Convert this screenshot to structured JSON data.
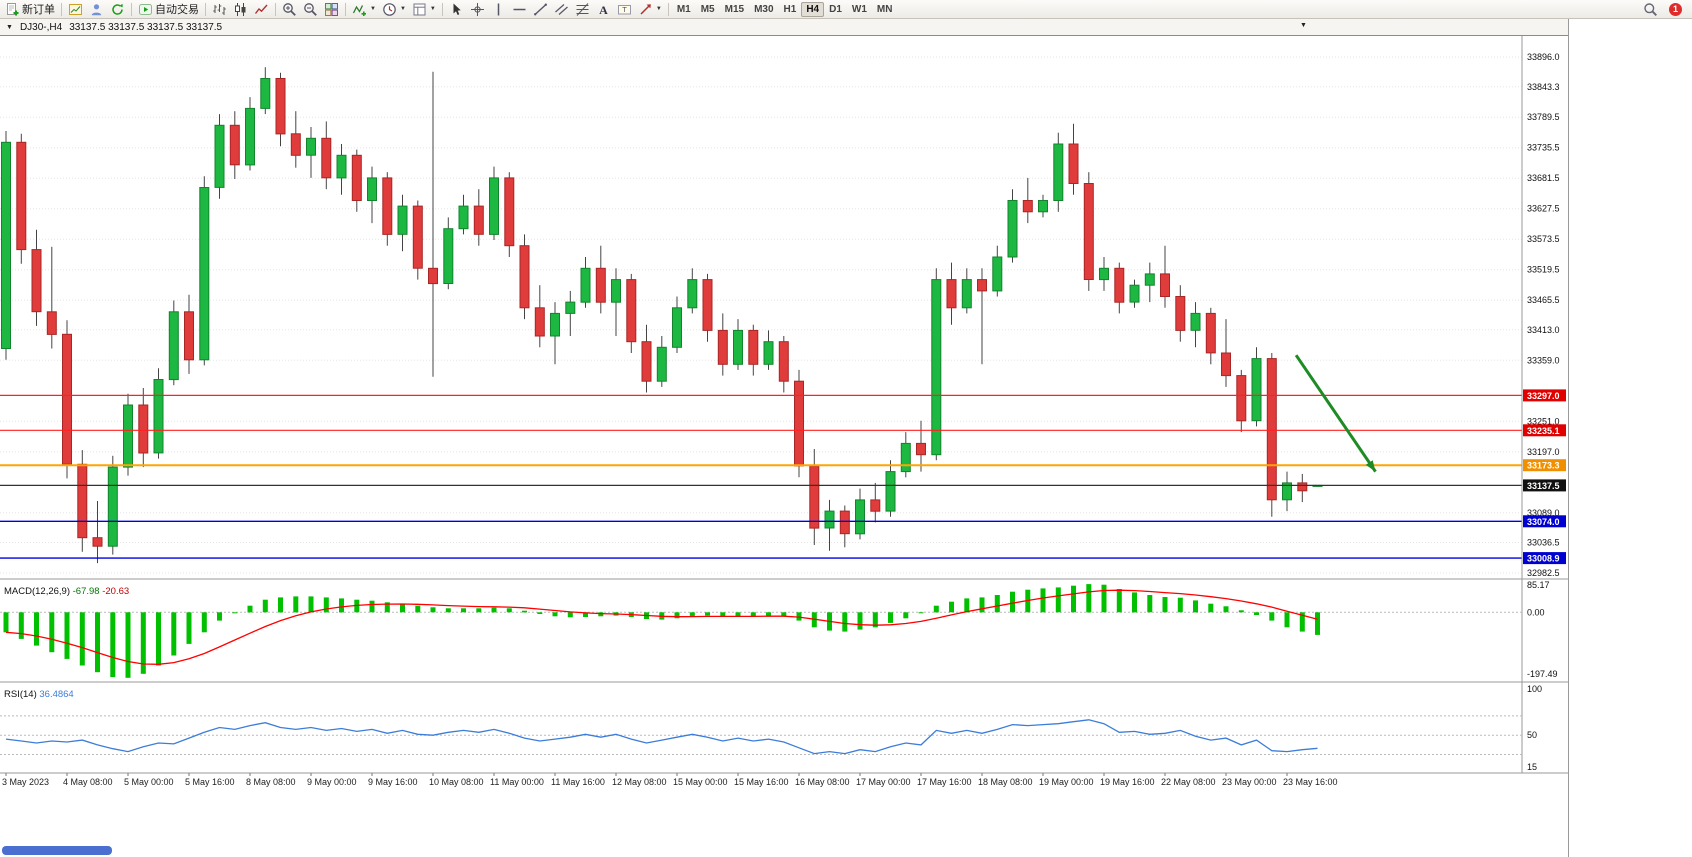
{
  "toolbar": {
    "groups": [
      {
        "name": "order",
        "items": [
          {
            "icon": "new-order",
            "label": "新订单",
            "name": "new-order-button"
          }
        ]
      },
      {
        "name": "windows",
        "items": [
          {
            "icon": "new-chart",
            "name": "new-chart-button"
          },
          {
            "icon": "profiles",
            "name": "profiles-button"
          },
          {
            "icon": "refresh",
            "name": "refresh-button"
          }
        ]
      },
      {
        "name": "autotrading",
        "items": [
          {
            "icon": "autotrading",
            "label": "自动交易",
            "name": "autotrading-button"
          }
        ]
      },
      {
        "name": "chart-types",
        "items": [
          {
            "icon": "bar-chart",
            "name": "bar-chart-button"
          },
          {
            "icon": "candle-chart",
            "name": "candlestick-chart-button"
          },
          {
            "icon": "line-chart",
            "name": "line-chart-button"
          }
        ]
      },
      {
        "name": "zoom",
        "items": [
          {
            "icon": "zoom-in",
            "name": "zoom-in-button"
          },
          {
            "icon": "zoom-out",
            "name": "zoom-out-button"
          },
          {
            "icon": "tile-windows",
            "name": "tile-windows-button"
          }
        ]
      },
      {
        "name": "tools",
        "items": [
          {
            "icon": "indicators",
            "dropdown": true,
            "name": "indicators-button"
          },
          {
            "icon": "periods",
            "dropdown": true,
            "name": "periods-button"
          },
          {
            "icon": "templates",
            "dropdown": true,
            "name": "templates-button"
          }
        ]
      },
      {
        "name": "objects",
        "items": [
          {
            "icon": "cursor",
            "name": "cursor-button"
          },
          {
            "icon": "crosshair",
            "name": "crosshair-button"
          },
          {
            "icon": "vertical-line",
            "name": "vertical-line-button"
          },
          {
            "icon": "horizontal-line",
            "name": "horizontal-line-button"
          },
          {
            "icon": "trendline",
            "name": "trendline-button"
          },
          {
            "icon": "channel",
            "name": "channel-button"
          },
          {
            "icon": "fibonacci",
            "name": "fibonacci-button"
          },
          {
            "icon": "text",
            "name": "text-button"
          },
          {
            "icon": "text-label",
            "name": "text-label-button"
          },
          {
            "icon": "arrows",
            "dropdown": true,
            "name": "arrows-button"
          }
        ]
      },
      {
        "name": "timeframes",
        "items": []
      }
    ],
    "timeframes": [
      "M1",
      "M5",
      "M15",
      "M30",
      "H1",
      "H4",
      "D1",
      "W1",
      "MN"
    ],
    "active_timeframe": "H4",
    "right": {
      "badge": "1"
    }
  },
  "chart": {
    "title_symbol": "DJ30-,H4",
    "title_ohlc": "33137.5 33137.5 33137.5 33137.5"
  },
  "chart_data": [
    {
      "id": "price",
      "type": "candlestick",
      "symbol": "DJ30-",
      "timeframe": "H4",
      "colors": {
        "up": "#1db841",
        "up_border": "#12842e",
        "down": "#e03c3c",
        "down_border": "#a82626",
        "wick": "#444444"
      },
      "x_label_step": 4,
      "x_labels": [
        "3 May 2023",
        "4 May 08:00",
        "5 May 00:00",
        "5 May 16:00",
        "8 May 08:00",
        "9 May 00:00",
        "9 May 16:00",
        "10 May 08:00",
        "11 May 00:00",
        "11 May 16:00",
        "12 May 08:00",
        "15 May 00:00",
        "15 May 16:00",
        "16 May 08:00",
        "17 May 00:00",
        "17 May 16:00",
        "18 May 08:00",
        "19 May 00:00",
        "19 May 16:00",
        "22 May 08:00",
        "23 May 00:00",
        "23 May 16:00"
      ],
      "y_ticks": [
        "33896.0",
        "33843.3",
        "33789.5",
        "33735.5",
        "33681.5",
        "33627.5",
        "33573.5",
        "33519.5",
        "33465.5",
        "33413.0",
        "33359.0",
        "33251.0",
        "33197.0",
        "33089.0",
        "33036.5",
        "32982.5"
      ],
      "candles": [
        [
          33380,
          33765,
          33360,
          33745
        ],
        [
          33745,
          33760,
          33530,
          33555
        ],
        [
          33555,
          33590,
          33420,
          33445
        ],
        [
          33445,
          33560,
          33380,
          33405
        ],
        [
          33405,
          33430,
          33150,
          33175
        ],
        [
          33175,
          33200,
          33020,
          33045
        ],
        [
          33045,
          33110,
          33000,
          33030
        ],
        [
          33030,
          33190,
          33015,
          33170
        ],
        [
          33170,
          33300,
          33155,
          33280
        ],
        [
          33280,
          33310,
          33170,
          33195
        ],
        [
          33195,
          33345,
          33185,
          33325
        ],
        [
          33325,
          33465,
          33315,
          33445
        ],
        [
          33445,
          33475,
          33335,
          33360
        ],
        [
          33360,
          33685,
          33350,
          33665
        ],
        [
          33665,
          33795,
          33645,
          33775
        ],
        [
          33775,
          33800,
          33680,
          33705
        ],
        [
          33705,
          33825,
          33695,
          33805
        ],
        [
          33805,
          33878,
          33795,
          33858
        ],
        [
          33858,
          33868,
          33738,
          33760
        ],
        [
          33760,
          33800,
          33700,
          33722
        ],
        [
          33722,
          33772,
          33682,
          33752
        ],
        [
          33752,
          33782,
          33662,
          33682
        ],
        [
          33682,
          33742,
          33652,
          33722
        ],
        [
          33722,
          33732,
          33622,
          33642
        ],
        [
          33642,
          33702,
          33602,
          33682
        ],
        [
          33682,
          33692,
          33562,
          33582
        ],
        [
          33582,
          33652,
          33552,
          33632
        ],
        [
          33632,
          33642,
          33502,
          33522
        ],
        [
          33522,
          33870,
          33330,
          33495
        ],
        [
          33495,
          33612,
          33485,
          33592
        ],
        [
          33592,
          33652,
          33582,
          33632
        ],
        [
          33632,
          33662,
          33562,
          33582
        ],
        [
          33582,
          33702,
          33572,
          33682
        ],
        [
          33682,
          33692,
          33542,
          33562
        ],
        [
          33562,
          33582,
          33432,
          33452
        ],
        [
          33452,
          33492,
          33382,
          33402
        ],
        [
          33402,
          33462,
          33352,
          33442
        ],
        [
          33442,
          33482,
          33402,
          33462
        ],
        [
          33462,
          33542,
          33452,
          33522
        ],
        [
          33522,
          33562,
          33442,
          33462
        ],
        [
          33462,
          33522,
          33402,
          33502
        ],
        [
          33502,
          33512,
          33372,
          33392
        ],
        [
          33392,
          33422,
          33302,
          33322
        ],
        [
          33322,
          33402,
          33312,
          33382
        ],
        [
          33382,
          33472,
          33372,
          33452
        ],
        [
          33452,
          33522,
          33442,
          33502
        ],
        [
          33502,
          33512,
          33392,
          33412
        ],
        [
          33412,
          33442,
          33332,
          33352
        ],
        [
          33352,
          33432,
          33342,
          33412
        ],
        [
          33412,
          33422,
          33332,
          33352
        ],
        [
          33352,
          33412,
          33342,
          33392
        ],
        [
          33392,
          33402,
          33302,
          33322
        ],
        [
          33322,
          33342,
          33152,
          33172
        ],
        [
          33172,
          33202,
          33032,
          33062
        ],
        [
          33062,
          33112,
          33022,
          33092
        ],
        [
          33092,
          33102,
          33028,
          33052
        ],
        [
          33052,
          33132,
          33042,
          33112
        ],
        [
          33112,
          33142,
          33072,
          33092
        ],
        [
          33092,
          33182,
          33082,
          33162
        ],
        [
          33162,
          33232,
          33152,
          33212
        ],
        [
          33212,
          33252,
          33162,
          33192
        ],
        [
          33192,
          33522,
          33182,
          33502
        ],
        [
          33502,
          33532,
          33422,
          33452
        ],
        [
          33452,
          33522,
          33442,
          33502
        ],
        [
          33502,
          33522,
          33352,
          33482
        ],
        [
          33482,
          33562,
          33472,
          33542
        ],
        [
          33542,
          33662,
          33532,
          33642
        ],
        [
          33642,
          33682,
          33602,
          33622
        ],
        [
          33622,
          33652,
          33612,
          33642
        ],
        [
          33642,
          33762,
          33622,
          33742
        ],
        [
          33742,
          33778,
          33652,
          33672
        ],
        [
          33672,
          33692,
          33482,
          33502
        ],
        [
          33502,
          33542,
          33482,
          33522
        ],
        [
          33522,
          33532,
          33442,
          33462
        ],
        [
          33462,
          33502,
          33452,
          33492
        ],
        [
          33492,
          33532,
          33462,
          33512
        ],
        [
          33512,
          33562,
          33452,
          33472
        ],
        [
          33472,
          33492,
          33392,
          33412
        ],
        [
          33412,
          33462,
          33382,
          33442
        ],
        [
          33442,
          33452,
          33352,
          33372
        ],
        [
          33372,
          33432,
          33312,
          33332
        ],
        [
          33332,
          33342,
          33232,
          33252
        ],
        [
          33252,
          33382,
          33242,
          33362
        ],
        [
          33362,
          33372,
          33082,
          33112
        ],
        [
          33112,
          33162,
          33092,
          33142
        ],
        [
          33142,
          33158,
          33108,
          33128
        ],
        [
          33137.5,
          33137.5,
          33137.5,
          33137.5
        ]
      ],
      "hlines": [
        {
          "price": 33297.0,
          "label": "33297.0",
          "color": "#ff2020",
          "tag_bg": "#e00000",
          "width": 1.2
        },
        {
          "price": 33235.1,
          "label": "33235.1",
          "color": "#ff2020",
          "tag_bg": "#e00000",
          "width": 1.2
        },
        {
          "price": 33173.3,
          "label": "33173.3",
          "color": "#ffa500",
          "tag_bg": "#f09000",
          "width": 2
        },
        {
          "price": 33137.5,
          "label": "33137.5",
          "color": "#333333",
          "tag_bg": "#111111",
          "width": 1.2
        },
        {
          "price": 33074.0,
          "label": "33074.0",
          "color": "#0000e0",
          "tag_bg": "#0000d0",
          "width": 1.4
        },
        {
          "price": 33008.9,
          "label": "33008.9",
          "color": "#0000e0",
          "tag_bg": "#0000d0",
          "width": 1.4
        }
      ],
      "arrow": {
        "from_index": 84.6,
        "from_price": 33368,
        "to_index": 89.8,
        "to_price": 33162,
        "color": "#1f8b24",
        "width": 3
      },
      "current_price": "33137.5"
    },
    {
      "id": "macd",
      "type": "bar",
      "title": "MACD(12,26,9)",
      "value_main": "-67.98",
      "value_signal": "-20.63",
      "axis_labels": [
        "85.17",
        "0.00",
        "-197.49"
      ],
      "range": [
        85.17,
        -197.49
      ],
      "signal_period": 9,
      "colors": {
        "histogram": "#00c000",
        "signal": "#ff0000"
      },
      "values": [
        -60,
        -80,
        -100,
        -120,
        -140,
        -160,
        -180,
        -195,
        -197,
        -185,
        -160,
        -130,
        -95,
        -60,
        -25,
        0,
        20,
        38,
        45,
        48,
        48,
        45,
        42,
        38,
        35,
        30,
        26,
        20,
        15,
        12,
        12,
        12,
        14,
        12,
        5,
        -5,
        -12,
        -15,
        -14,
        -12,
        -10,
        -14,
        -20,
        -22,
        -18,
        -12,
        -10,
        -12,
        -12,
        -12,
        -10,
        -12,
        -25,
        -45,
        -55,
        -58,
        -52,
        -45,
        -32,
        -18,
        -2,
        20,
        32,
        42,
        45,
        52,
        62,
        68,
        72,
        75,
        80,
        85,
        83,
        70,
        60,
        52,
        46,
        44,
        36,
        26,
        18,
        6,
        -8,
        -25,
        -45,
        -58,
        -68
      ]
    },
    {
      "id": "rsi",
      "type": "line",
      "title": "RSI(14)",
      "value": "36.4864",
      "axis_labels": [
        "100",
        "50",
        "15"
      ],
      "range": [
        100,
        15
      ],
      "levels": [
        70,
        50,
        30
      ],
      "color": "#3c7dd9",
      "values": [
        46,
        44,
        42,
        44,
        43,
        45,
        40,
        36,
        33,
        38,
        42,
        41,
        47,
        53,
        58,
        56,
        60,
        63,
        58,
        56,
        58,
        55,
        57,
        54,
        56,
        52,
        55,
        51,
        50,
        53,
        55,
        53,
        56,
        52,
        47,
        44,
        46,
        48,
        51,
        48,
        51,
        46,
        42,
        45,
        48,
        51,
        48,
        44,
        47,
        44,
        46,
        43,
        37,
        31,
        33,
        31,
        35,
        33,
        38,
        42,
        40,
        55,
        52,
        55,
        52,
        56,
        61,
        60,
        61,
        62,
        64,
        66,
        62,
        53,
        54,
        51,
        52,
        55,
        49,
        45,
        47,
        40,
        45,
        34,
        33,
        35,
        36.5
      ]
    }
  ]
}
